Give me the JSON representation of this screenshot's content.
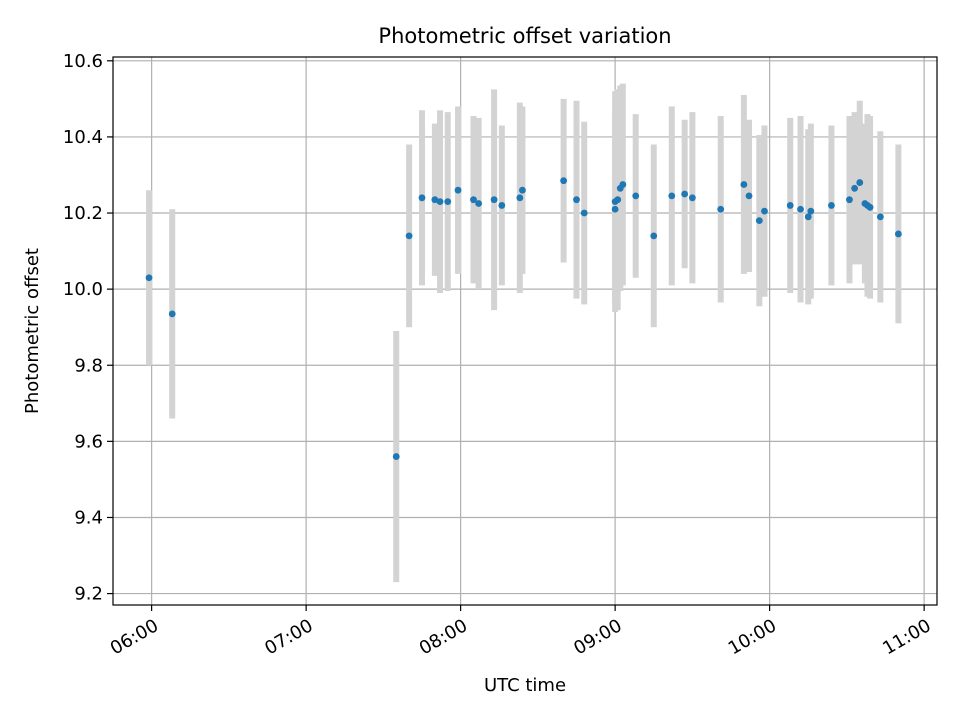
{
  "chart_data": {
    "type": "scatter",
    "title": "Photometric offset variation",
    "xlabel": "UTC time",
    "ylabel": "Photometric offset",
    "x_tick_labels": [
      "06:00",
      "07:00",
      "08:00",
      "09:00",
      "10:00",
      "11:00"
    ],
    "x_tick_values": [
      "06:00",
      "07:00",
      "08:00",
      "09:00",
      "10:00",
      "11:00"
    ],
    "y_tick_labels": [
      "9.2",
      "9.4",
      "9.6",
      "9.8",
      "10.0",
      "10.2",
      "10.4",
      "10.6"
    ],
    "y_tick_values": [
      9.2,
      9.4,
      9.6,
      9.8,
      10.0,
      10.2,
      10.4,
      10.6
    ],
    "xlim": [
      "05:45",
      "11:05"
    ],
    "ylim": [
      9.17,
      10.61
    ],
    "grid": true,
    "colors": {
      "point": "#1f77b4",
      "errorbar": "#d3d3d3",
      "grid": "#b0b0b0"
    },
    "series": [
      {
        "x": [
          "05:59",
          "06:08",
          "07:35",
          "07:40",
          "07:45",
          "07:50",
          "07:52",
          "07:55",
          "07:59",
          "08:05",
          "08:07",
          "08:13",
          "08:16",
          "08:23",
          "08:24",
          "08:40",
          "08:45",
          "08:48",
          "09:00",
          "09:00",
          "09:01",
          "09:02",
          "09:03",
          "09:08",
          "09:15",
          "09:22",
          "09:27",
          "09:30",
          "09:41",
          "09:50",
          "09:52",
          "09:56",
          "09:58",
          "10:08",
          "10:12",
          "10:15",
          "10:16",
          "10:24",
          "10:31",
          "10:33",
          "10:35",
          "10:37",
          "10:38",
          "10:39",
          "10:43",
          "10:50"
        ],
        "y": [
          10.03,
          9.935,
          9.56,
          10.14,
          10.24,
          10.235,
          10.23,
          10.23,
          10.26,
          10.235,
          10.225,
          10.235,
          10.22,
          10.24,
          10.26,
          10.285,
          10.235,
          10.2,
          10.21,
          10.23,
          10.235,
          10.265,
          10.275,
          10.245,
          10.14,
          10.245,
          10.25,
          10.24,
          10.21,
          10.275,
          10.245,
          10.18,
          10.205,
          10.22,
          10.21,
          10.19,
          10.205,
          10.22,
          10.235,
          10.265,
          10.28,
          10.225,
          10.22,
          10.215,
          10.19,
          10.145
        ],
        "y_err": [
          0.23,
          0.275,
          0.33,
          0.24,
          0.23,
          0.2,
          0.24,
          0.235,
          0.22,
          0.22,
          0.225,
          0.29,
          0.21,
          0.25,
          0.22,
          0.215,
          0.26,
          0.24,
          0.25,
          0.29,
          0.29,
          0.27,
          0.265,
          0.215,
          0.24,
          0.235,
          0.195,
          0.225,
          0.245,
          0.235,
          0.2,
          0.225,
          0.225,
          0.23,
          0.245,
          0.23,
          0.23,
          0.21,
          0.22,
          0.2,
          0.215,
          0.21,
          0.24,
          0.24,
          0.225,
          0.235
        ]
      }
    ]
  }
}
